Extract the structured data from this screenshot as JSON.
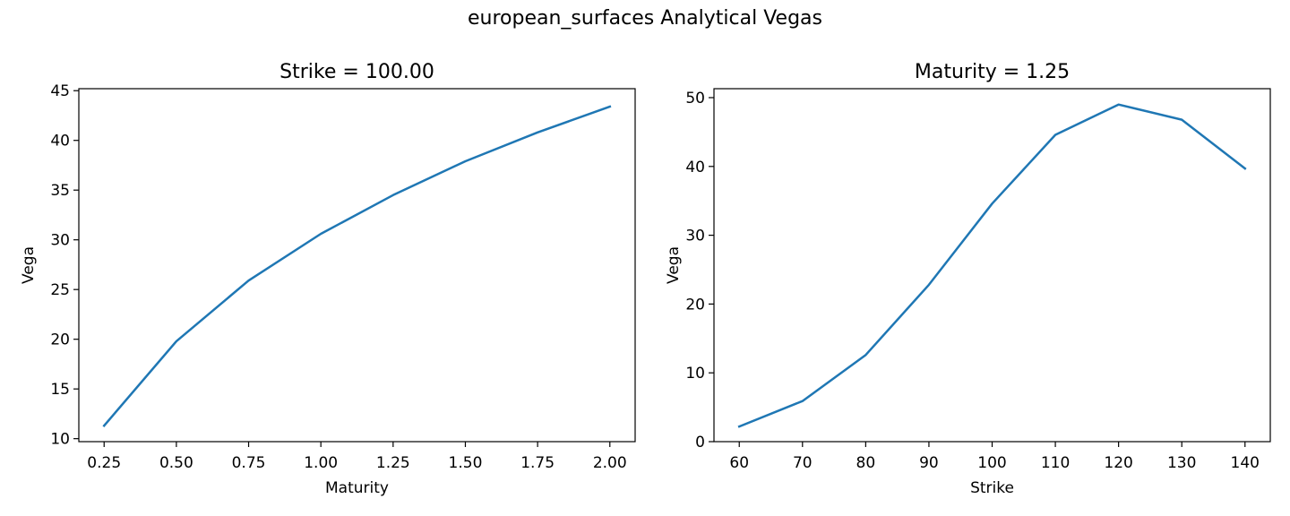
{
  "suptitle": "european_surfaces Analytical Vegas",
  "style": {
    "line_color": "#1f77b4",
    "axis_color": "#000000",
    "background": "#ffffff"
  },
  "chart_data": [
    {
      "type": "line",
      "title": "Strike = 100.00",
      "xlabel": "Maturity",
      "ylabel": "Vega",
      "xlim": [
        0.1625,
        2.0875
      ],
      "ylim": [
        9.7,
        45.2
      ],
      "xticks": [
        0.25,
        0.5,
        0.75,
        1.0,
        1.25,
        1.5,
        1.75,
        2.0
      ],
      "xtick_labels": [
        "0.25",
        "0.50",
        "0.75",
        "1.00",
        "1.25",
        "1.50",
        "1.75",
        "2.00"
      ],
      "yticks": [
        10,
        15,
        20,
        25,
        30,
        35,
        40,
        45
      ],
      "ytick_labels": [
        "10",
        "15",
        "20",
        "25",
        "30",
        "35",
        "40",
        "45"
      ],
      "grid": false,
      "series": [
        {
          "x": [
            0.25,
            0.5,
            0.75,
            1.0,
            1.25,
            1.5,
            1.75,
            2.0
          ],
          "y": [
            11.3,
            19.8,
            25.9,
            30.6,
            34.5,
            37.9,
            40.8,
            43.4
          ]
        }
      ]
    },
    {
      "type": "line",
      "title": "Maturity = 1.25",
      "xlabel": "Strike",
      "ylabel": "Vega",
      "xlim": [
        56,
        144
      ],
      "ylim": [
        0,
        51.3
      ],
      "xticks": [
        60,
        70,
        80,
        90,
        100,
        110,
        120,
        130,
        140
      ],
      "xtick_labels": [
        "60",
        "70",
        "80",
        "90",
        "100",
        "110",
        "120",
        "130",
        "140"
      ],
      "yticks": [
        0,
        10,
        20,
        30,
        40,
        50
      ],
      "ytick_labels": [
        "0",
        "10",
        "20",
        "30",
        "40",
        "50"
      ],
      "grid": false,
      "series": [
        {
          "x": [
            60,
            70,
            80,
            90,
            100,
            110,
            120,
            130,
            140
          ],
          "y": [
            2.2,
            5.9,
            12.6,
            22.8,
            34.6,
            44.6,
            49.0,
            46.8,
            39.7
          ]
        }
      ]
    }
  ]
}
